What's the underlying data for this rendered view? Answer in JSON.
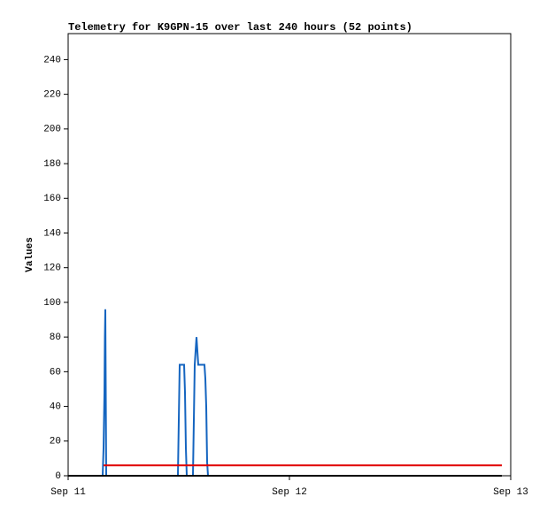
{
  "chart_data": {
    "type": "line",
    "title": "Telemetry for K9GPN-15 over last 240 hours (52 points)",
    "y_label": "Values",
    "xlim": [
      0,
      2
    ],
    "xticks": [
      {
        "value": 0,
        "label": "Sep 11"
      },
      {
        "value": 1,
        "label": "Sep 12"
      },
      {
        "value": 2,
        "label": "Sep 13"
      }
    ],
    "ylim": [
      0,
      255
    ],
    "yticks": [
      0,
      20,
      40,
      60,
      80,
      100,
      120,
      140,
      160,
      180,
      200,
      220,
      240
    ],
    "grid": false,
    "series": [
      {
        "color": "#1565c0",
        "x": [
          0.156,
          0.16,
          0.164,
          0.166,
          0.168,
          0.172,
          0.496,
          0.5,
          0.504,
          0.524,
          0.528,
          0.532,
          0.536,
          0.564,
          0.568,
          0.572,
          0.58,
          0.588,
          0.616,
          0.62,
          0.624,
          0.628,
          0.632
        ],
        "values": [
          0,
          16,
          48,
          80,
          96,
          0,
          0,
          32,
          64,
          64,
          48,
          16,
          0,
          0,
          32,
          64,
          80,
          64,
          64,
          56,
          40,
          8,
          0
        ]
      },
      {
        "color": "#e00000",
        "x": [
          0.16,
          1.96
        ],
        "values": [
          6,
          6
        ]
      },
      {
        "color": "#000000",
        "x": [
          0,
          1.96
        ],
        "values": [
          0,
          0
        ]
      }
    ]
  }
}
